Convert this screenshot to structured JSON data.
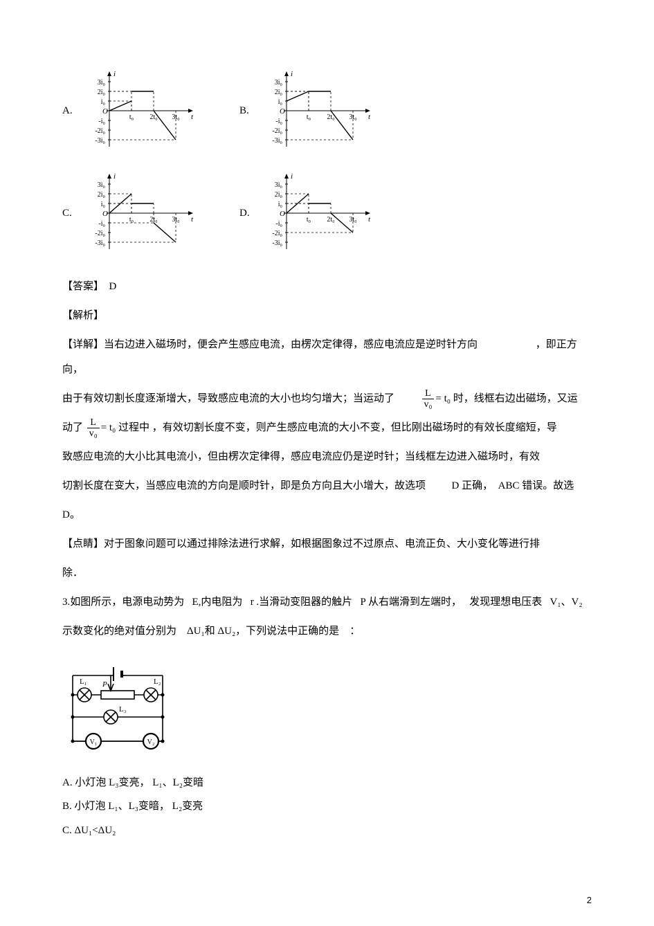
{
  "graphs": {
    "y_ticks": [
      "3i₀",
      "2i₀",
      "i₀",
      "-i₀",
      "-2i₀",
      "-3i₀"
    ],
    "x_ticks": [
      "t₀",
      "2t₀",
      "3t₀"
    ],
    "axis_label_y": "i",
    "axis_label_x": "t",
    "colors": {
      "axis": "#000000",
      "line": "#000000",
      "dash": "#000000",
      "bg": "#ffffff"
    },
    "A": {
      "seg1": [
        [
          0,
          0
        ],
        [
          1,
          1
        ]
      ],
      "seg2": [
        [
          1,
          2
        ],
        [
          2,
          2
        ]
      ],
      "seg3": [
        [
          2,
          0
        ],
        [
          3,
          -3
        ]
      ]
    },
    "B": {
      "seg1": [
        [
          0,
          1
        ],
        [
          1,
          2
        ]
      ],
      "seg2": [
        [
          1,
          2
        ],
        [
          2,
          2
        ]
      ],
      "seg3": [
        [
          2,
          0
        ],
        [
          3,
          -3
        ]
      ]
    },
    "C": {
      "seg1": [
        [
          0,
          0
        ],
        [
          1,
          2
        ]
      ],
      "seg2": [
        [
          1,
          1
        ],
        [
          2,
          1
        ]
      ],
      "seg3": [
        [
          2,
          -1
        ],
        [
          3,
          -3
        ]
      ]
    },
    "D": {
      "seg1": [
        [
          0,
          0
        ],
        [
          1,
          2
        ]
      ],
      "seg2": [
        [
          1,
          1
        ],
        [
          2,
          1
        ]
      ],
      "seg3": [
        [
          2,
          0
        ],
        [
          3,
          -2
        ]
      ]
    }
  },
  "opts": {
    "A": "A.",
    "B": "B.",
    "C": "C.",
    "D": "D."
  },
  "answer_label": "【答案】",
  "answer_value": "D",
  "analysis_label": "【解析】",
  "detail_label": "【详解】",
  "detail_1": "当右边进入磁场时，便会产生感应电流，由楞次定律得，感应电流应是逆时针方向",
  "detail_1b": "，即正方向，",
  "detail_2a": "由于有效切割长度逐渐增大，导致感应电流的大小也均匀增大；当运动了",
  "detail_2b": "时，线框右边出磁场，又运",
  "detail_3a": "动了",
  "detail_3b": "过程中 ，有效切割长度不变，则产生感应电流的大小不变，但比刚出磁场时的有效长度缩短，导",
  "detail_4": "致感应电流的大小比其电流小，但由楞次定律得，感应电流应仍是逆时针；当线框左边进入磁场时，有效",
  "detail_5a": "切割长度在变大，当感应电流的方向是顺时针，即是负方向且大小增大，故选项",
  "detail_5b": "D 正确，",
  "detail_5c": "ABC 错误。故选",
  "detail_6": "D。",
  "frac": {
    "num": "L",
    "den": "v₀",
    "eq": "= t₀"
  },
  "tip_label": "【点睛】",
  "tip_1": "对于图象问题可以通过排除法进行求解，如根据图象过不过原点、电流正负、大小变化等进行排",
  "tip_2": "除．",
  "q3_a": "3.如图所示，电源电动势为",
  "q3_b": "E,内电阻为",
  "q3_c": "r .当滑动变阻器的触片",
  "q3_d": "P 从右端滑到左端时，",
  "q3_e": "发现理想电压表",
  "q3_f": "V₁、V₂",
  "q3_g": "示数变化的绝对值分别为",
  "q3_h": "ΔU₁和 ΔU₂，下列说法中正确的是",
  "q3_i": "：",
  "circuit": {
    "labels": {
      "L1": "L₁",
      "L2": "L₂",
      "L3": "L₃",
      "P": "P",
      "V1": "V₁",
      "V2": "V₂"
    },
    "stroke": "#000000",
    "fill": "#ffffff"
  },
  "choiceA": "A.  小灯泡 L₃变亮， L₁、L₂变暗",
  "choiceB": "B.  小灯泡 L₁、L₃变暗， L₂变亮",
  "choiceC": "C.  ΔU₁<ΔU₂",
  "page_number": "2"
}
